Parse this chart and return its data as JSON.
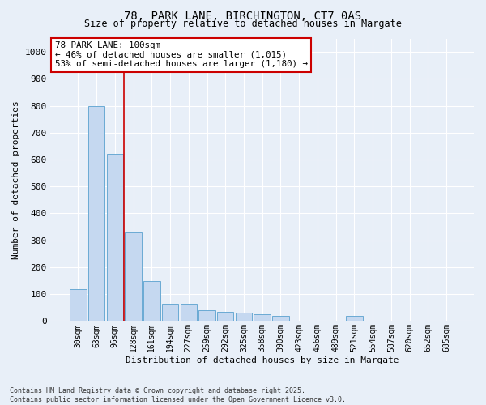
{
  "title_line1": "78, PARK LANE, BIRCHINGTON, CT7 0AS",
  "title_line2": "Size of property relative to detached houses in Margate",
  "xlabel": "Distribution of detached houses by size in Margate",
  "ylabel": "Number of detached properties",
  "bar_color": "#c5d8f0",
  "bar_edge_color": "#6aaad4",
  "background_color": "#e8eff8",
  "grid_color": "#ffffff",
  "vline_color": "#cc0000",
  "vline_x": 2.5,
  "annotation_text": "78 PARK LANE: 100sqm\n← 46% of detached houses are smaller (1,015)\n53% of semi-detached houses are larger (1,180) →",
  "annotation_box_color": "#cc0000",
  "categories": [
    "30sqm",
    "63sqm",
    "96sqm",
    "128sqm",
    "161sqm",
    "194sqm",
    "227sqm",
    "259sqm",
    "292sqm",
    "325sqm",
    "358sqm",
    "390sqm",
    "423sqm",
    "456sqm",
    "489sqm",
    "521sqm",
    "554sqm",
    "587sqm",
    "620sqm",
    "652sqm",
    "685sqm"
  ],
  "values": [
    120,
    800,
    620,
    330,
    150,
    65,
    65,
    40,
    35,
    30,
    25,
    18,
    0,
    0,
    0,
    18,
    0,
    0,
    0,
    0,
    0
  ],
  "ylim": [
    0,
    1050
  ],
  "yticks": [
    0,
    100,
    200,
    300,
    400,
    500,
    600,
    700,
    800,
    900,
    1000
  ],
  "footnote": "Contains HM Land Registry data © Crown copyright and database right 2025.\nContains public sector information licensed under the Open Government Licence v3.0."
}
